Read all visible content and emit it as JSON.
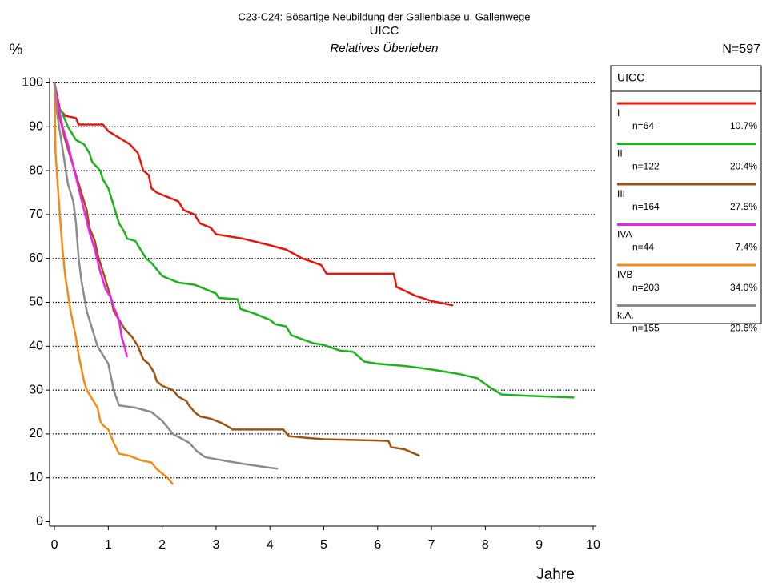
{
  "chart_data": {
    "type": "line",
    "title": "C23-C24: Bösartige Neubildung der Gallenblase u. Gallenwege",
    "subtitle": "UICC",
    "subtitle2": "Relatives Überleben",
    "y_label": "%",
    "x_label": "Jahre",
    "total": "N=597",
    "legend_title": "UICC",
    "xlim": [
      -0.09,
      10.06
    ],
    "xticks": [
      0,
      1,
      2,
      3,
      4,
      5,
      6,
      7,
      8,
      9,
      10
    ],
    "ylim": [
      -1,
      101
    ],
    "yticks": [
      0,
      10,
      20,
      30,
      40,
      50,
      60,
      70,
      80,
      90,
      100
    ],
    "grid": true,
    "series": [
      {
        "name": "I",
        "count": "n=64",
        "share": "10.7%",
        "color": "#e8160e",
        "x": [
          0,
          0.05,
          0.1,
          0.2,
          0.4,
          0.45,
          0.9,
          1.0,
          1.2,
          1.4,
          1.55,
          1.65,
          1.75,
          1.8,
          1.9,
          2.3,
          2.4,
          2.6,
          2.7,
          2.9,
          3.0,
          3.5,
          4.0,
          4.3,
          4.6,
          4.95,
          5.05,
          6.3,
          6.35,
          6.7,
          7.0,
          7.4
        ],
        "values": [
          100,
          97,
          94,
          92.5,
          92,
          90.5,
          90.5,
          89,
          87.5,
          86,
          84,
          80,
          79,
          76,
          75,
          73,
          71,
          70,
          68,
          67,
          65.5,
          64.5,
          63,
          62,
          60,
          58.5,
          56.5,
          56.5,
          53.5,
          51.5,
          50.3,
          49.3
        ]
      },
      {
        "name": "II",
        "count": "n=122",
        "share": "20.4%",
        "color": "#1db31a",
        "x": [
          0,
          0.05,
          0.15,
          0.25,
          0.4,
          0.55,
          0.65,
          0.7,
          0.85,
          0.9,
          1.0,
          1.1,
          1.2,
          1.3,
          1.35,
          1.5,
          1.6,
          1.7,
          1.8,
          1.9,
          2.0,
          2.2,
          2.3,
          2.6,
          2.8,
          3.0,
          3.05,
          3.4,
          3.45,
          3.7,
          4.0,
          4.1,
          4.3,
          4.4,
          4.8,
          5.0,
          5.3,
          5.55,
          5.75,
          6.0,
          6.5,
          7.0,
          7.5,
          7.85,
          8.1,
          8.3,
          8.8,
          9.65
        ],
        "values": [
          100,
          95,
          93,
          90,
          87,
          86,
          84,
          82,
          80,
          78,
          76,
          72,
          68,
          66,
          64.5,
          64,
          62,
          60,
          59,
          57.5,
          56,
          55,
          54.5,
          54,
          53,
          52,
          51,
          50.7,
          48.5,
          47.5,
          46,
          45,
          44.5,
          42.5,
          40.7,
          40.3,
          39,
          38.7,
          36.5,
          36,
          35.5,
          34.7,
          33.7,
          32.7,
          30.5,
          29,
          28.7,
          28.3
        ]
      },
      {
        "name": "III",
        "count": "n=164",
        "share": "27.5%",
        "color": "#a0520f",
        "x": [
          0,
          0.1,
          0.2,
          0.3,
          0.4,
          0.5,
          0.6,
          0.65,
          0.75,
          0.8,
          0.9,
          1.0,
          1.05,
          1.1,
          1.2,
          1.3,
          1.45,
          1.55,
          1.65,
          1.75,
          1.85,
          1.9,
          2.0,
          2.2,
          2.3,
          2.45,
          2.5,
          2.6,
          2.7,
          2.9,
          3.1,
          3.25,
          3.3,
          4.0,
          4.25,
          4.35,
          4.6,
          5.0,
          6.0,
          6.2,
          6.25,
          6.5,
          6.78
        ],
        "values": [
          100,
          92,
          87,
          83,
          79,
          75,
          71,
          67,
          64,
          61,
          57,
          53,
          51,
          48,
          46,
          44,
          42,
          40,
          37,
          36,
          34,
          32,
          31,
          30,
          28.5,
          27.5,
          26.5,
          25,
          24,
          23.5,
          22.5,
          21.5,
          21,
          21,
          21,
          19.5,
          19.2,
          18.8,
          18.5,
          18.4,
          17,
          16.5,
          15
        ]
      },
      {
        "name": "IVA",
        "count": "n=44",
        "share": "7.4%",
        "color": "#f01ef0",
        "x": [
          0,
          0.05,
          0.15,
          0.25,
          0.35,
          0.45,
          0.55,
          0.65,
          0.75,
          0.85,
          0.95,
          1.05,
          1.1,
          1.2,
          1.25,
          1.3,
          1.35
        ],
        "values": [
          100,
          96,
          90,
          86,
          81,
          76,
          71,
          66,
          62,
          57,
          53,
          51,
          49,
          46,
          42,
          40,
          37.5
        ]
      },
      {
        "name": "IVB",
        "count": "n=203",
        "share": "34.0%",
        "color": "#f58a14",
        "x": [
          0,
          0.02,
          0.1,
          0.15,
          0.2,
          0.25,
          0.3,
          0.35,
          0.4,
          0.45,
          0.5,
          0.55,
          0.6,
          0.7,
          0.8,
          0.85,
          0.9,
          1.0,
          1.1,
          1.2,
          1.4,
          1.6,
          1.8,
          1.9,
          2.0,
          2.1,
          2.2
        ],
        "values": [
          100,
          84,
          70,
          62,
          56,
          52,
          48,
          45,
          42,
          38,
          35,
          32,
          30,
          28,
          26,
          23,
          22,
          21,
          18,
          15.5,
          15,
          14,
          13.5,
          12,
          11,
          10,
          8.5
        ]
      },
      {
        "name": "k.A.",
        "count": "n=155",
        "share": "20.6%",
        "color": "#8c8c8c",
        "x": [
          0,
          0.05,
          0.15,
          0.25,
          0.35,
          0.4,
          0.45,
          0.5,
          0.6,
          0.7,
          0.8,
          0.9,
          1.0,
          1.05,
          1.1,
          1.2,
          1.5,
          1.8,
          1.9,
          2.0,
          2.1,
          2.2,
          2.35,
          2.5,
          2.65,
          2.8,
          3.2,
          3.6,
          4.0,
          4.15
        ],
        "values": [
          100,
          93,
          85,
          77,
          73,
          68,
          60,
          55,
          48,
          44,
          40,
          38,
          36,
          33,
          30,
          26.5,
          26,
          25,
          24,
          23,
          21.5,
          20,
          19,
          18,
          16,
          14.7,
          13.8,
          13,
          12.3,
          12.1
        ]
      }
    ]
  }
}
